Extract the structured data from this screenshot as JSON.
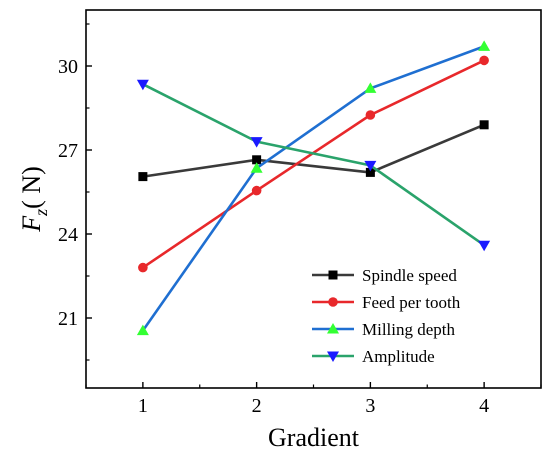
{
  "chart_data": {
    "type": "line",
    "xlabel": "Gradient",
    "ylabel_main": "F",
    "ylabel_sub": "z",
    "ylabel_unit": "( N)",
    "x": [
      1,
      2,
      3,
      4
    ],
    "xlim": [
      0.5,
      4.5
    ],
    "ylim": [
      18.5,
      32
    ],
    "yticks": [
      21,
      24,
      27,
      30
    ],
    "legend_position": "bottom-right",
    "series": [
      {
        "name": "Spindle speed",
        "values": [
          26.05,
          26.65,
          26.2,
          27.9
        ],
        "color": "#3a3a3a",
        "marker": "square"
      },
      {
        "name": "Feed per tooth",
        "values": [
          22.8,
          25.55,
          28.25,
          30.2
        ],
        "color": "#e8282b",
        "marker": "circle"
      },
      {
        "name": "Milling depth",
        "values": [
          20.55,
          26.35,
          29.2,
          30.7
        ],
        "color": "#1f6fd1",
        "marker": "triangle-up"
      },
      {
        "name": "Amplitude",
        "values": [
          29.35,
          27.3,
          26.45,
          23.6
        ],
        "color": "#2aa36b",
        "marker": "triangle-down"
      }
    ],
    "marker_colors": {
      "square": "#000000",
      "circle": "#e8282b",
      "triangle-up": "#33ff33",
      "triangle-down": "#1a1aff"
    }
  }
}
